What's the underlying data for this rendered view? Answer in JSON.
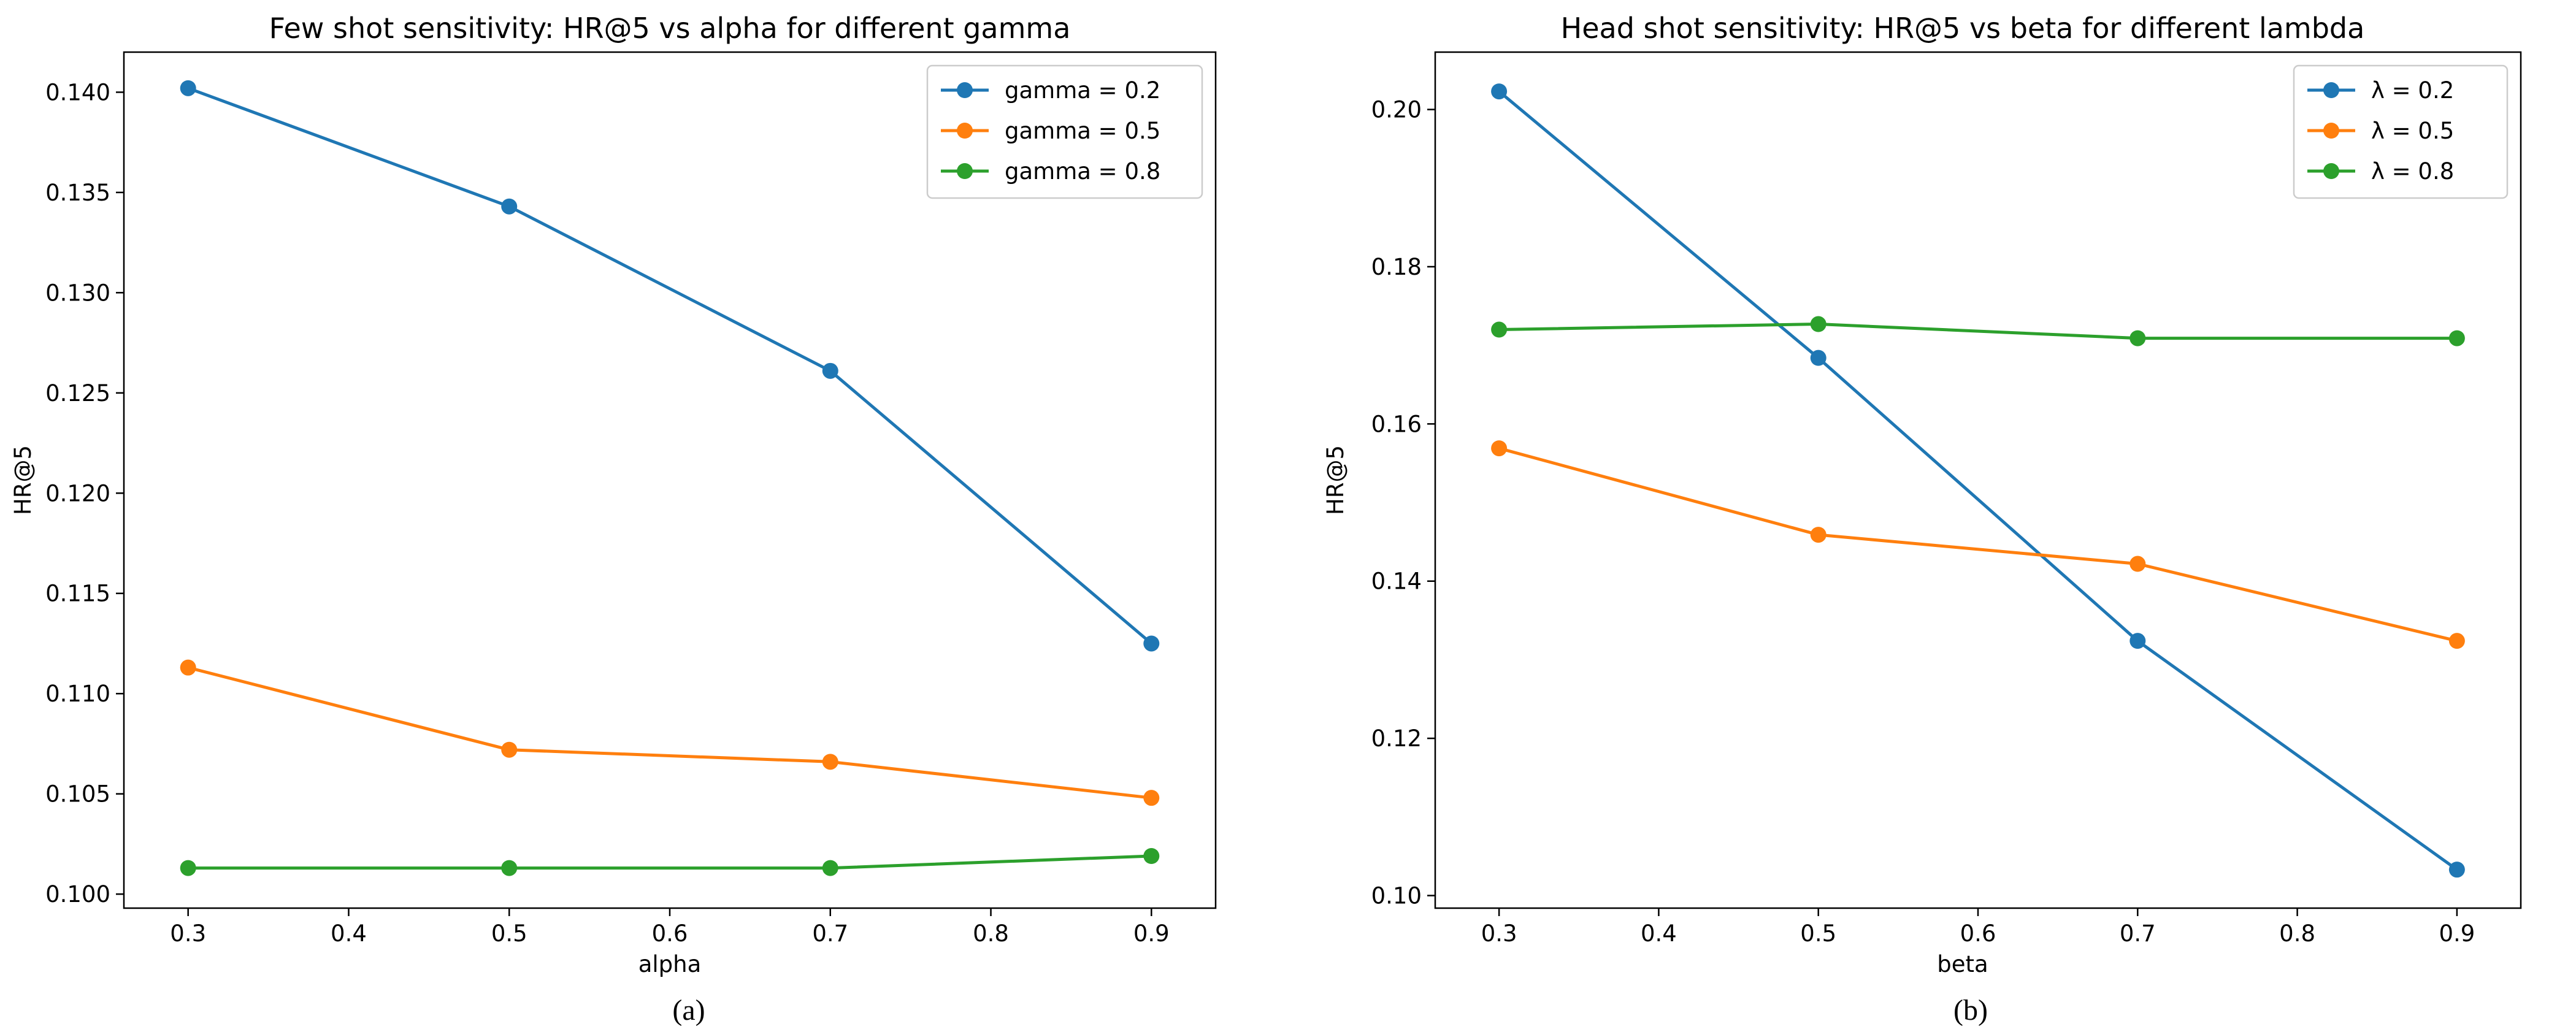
{
  "chart_data": [
    {
      "type": "line",
      "title": "Few shot sensitivity: HR@5 vs alpha for different gamma",
      "xlabel": "alpha",
      "ylabel": "HR@5",
      "caption": "(a)",
      "x": [
        0.3,
        0.5,
        0.7,
        0.9
      ],
      "xlim": [
        0.26,
        0.94
      ],
      "ylim": [
        0.0993,
        0.142
      ],
      "xticks": [
        0.3,
        0.4,
        0.5,
        0.6,
        0.7,
        0.8,
        0.9
      ],
      "xtick_labels": [
        "0.3",
        "0.4",
        "0.5",
        "0.6",
        "0.7",
        "0.8",
        "0.9"
      ],
      "yticks": [
        0.1,
        0.105,
        0.11,
        0.115,
        0.12,
        0.125,
        0.13,
        0.135,
        0.14
      ],
      "ytick_labels": [
        "0.100",
        "0.105",
        "0.110",
        "0.115",
        "0.120",
        "0.125",
        "0.130",
        "0.135",
        "0.140"
      ],
      "legend_position": "top-right",
      "series": [
        {
          "name": "gamma = 0.2",
          "color": "#1f77b4",
          "values": [
            0.1402,
            0.1343,
            0.1261,
            0.1125
          ]
        },
        {
          "name": "gamma = 0.5",
          "color": "#ff7f0e",
          "values": [
            0.1113,
            0.1072,
            0.1066,
            0.1048
          ]
        },
        {
          "name": "gamma = 0.8",
          "color": "#2ca02c",
          "values": [
            0.1013,
            0.1013,
            0.1013,
            0.1019
          ]
        }
      ]
    },
    {
      "type": "line",
      "title": "Head shot sensitivity: HR@5 vs beta for different lambda",
      "xlabel": "beta",
      "ylabel": "HR@5",
      "caption": "(b)",
      "x": [
        0.3,
        0.5,
        0.7,
        0.9
      ],
      "xlim": [
        0.26,
        0.94
      ],
      "ylim": [
        0.0984,
        0.2073
      ],
      "xticks": [
        0.3,
        0.4,
        0.5,
        0.6,
        0.7,
        0.8,
        0.9
      ],
      "xtick_labels": [
        "0.3",
        "0.4",
        "0.5",
        "0.6",
        "0.7",
        "0.8",
        "0.9"
      ],
      "yticks": [
        0.1,
        0.12,
        0.14,
        0.16,
        0.18,
        0.2
      ],
      "ytick_labels": [
        "0.10",
        "0.12",
        "0.14",
        "0.16",
        "0.18",
        "0.20"
      ],
      "legend_position": "top-right",
      "series": [
        {
          "name": "λ = 0.2",
          "color": "#1f77b4",
          "values": [
            0.2023,
            0.1684,
            0.1324,
            0.1033
          ]
        },
        {
          "name": "λ = 0.5",
          "color": "#ff7f0e",
          "values": [
            0.1569,
            0.1459,
            0.1422,
            0.1324
          ]
        },
        {
          "name": "λ = 0.8",
          "color": "#2ca02c",
          "values": [
            0.172,
            0.1727,
            0.1709,
            0.1709
          ]
        }
      ]
    }
  ]
}
